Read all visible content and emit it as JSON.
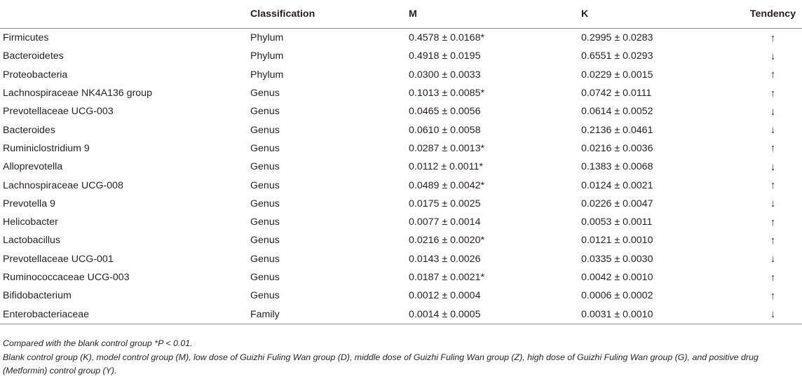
{
  "table": {
    "headers": [
      "",
      "Classification",
      "M",
      "K",
      "Tendency"
    ],
    "rows": [
      {
        "name": "Firmicutes",
        "classification": "Phylum",
        "m": "0.4578 ± 0.0168*",
        "k": "0.2995 ± 0.0283",
        "tendency": "↑"
      },
      {
        "name": "Bacteroidetes",
        "classification": "Phylum",
        "m": "0.4918 ± 0.0195",
        "k": "0.6551 ± 0.0293",
        "tendency": "↓"
      },
      {
        "name": "Proteobacteria",
        "classification": "Phylum",
        "m": "0.0300 ± 0.0033",
        "k": "0.0229 ± 0.0015",
        "tendency": "↑"
      },
      {
        "name": "Lachnospiraceae NK4A136 group",
        "classification": "Genus",
        "m": "0.1013 ± 0.0085*",
        "k": "0.0742 ± 0.0111",
        "tendency": "↑"
      },
      {
        "name": "Prevotellaceae UCG-003",
        "classification": "Genus",
        "m": "0.0465 ± 0.0056",
        "k": "0.0614 ± 0.0052",
        "tendency": "↓"
      },
      {
        "name": "Bacteroides",
        "classification": "Genus",
        "m": "0.0610 ± 0.0058",
        "k": "0.2136 ± 0.0461",
        "tendency": "↓"
      },
      {
        "name": "Ruminiclostridium 9",
        "classification": "Genus",
        "m": "0.0287 ± 0.0013*",
        "k": "0.0216 ± 0.0036",
        "tendency": "↑"
      },
      {
        "name": "Alloprevotella",
        "classification": "Genus",
        "m": "0.0112 ± 0.0011*",
        "k": "0.1383 ± 0.0068",
        "tendency": "↓"
      },
      {
        "name": "Lachnospiraceae UCG-008",
        "classification": "Genus",
        "m": "0.0489 ± 0.0042*",
        "k": "0.0124 ± 0.0021",
        "tendency": "↑"
      },
      {
        "name": "Prevotella 9",
        "classification": "Genus",
        "m": "0.0175 ± 0.0025",
        "k": "0.0226 ± 0.0047",
        "tendency": "↓"
      },
      {
        "name": "Helicobacter",
        "classification": "Genus",
        "m": "0.0077 ± 0.0014",
        "k": "0.0053 ± 0.0011",
        "tendency": "↑"
      },
      {
        "name": "Lactobacillus",
        "classification": "Genus",
        "m": "0.0216 ± 0.0020*",
        "k": "0.0121 ± 0.0010",
        "tendency": "↑"
      },
      {
        "name": "Prevotellaceae UCG-001",
        "classification": "Genus",
        "m": "0.0143 ± 0.0026",
        "k": "0.0335 ± 0.0030",
        "tendency": "↓"
      },
      {
        "name": "Ruminococcaceae UCG-003",
        "classification": "Genus",
        "m": "0.0187 ± 0.0021*",
        "k": "0.0042 ± 0.0010",
        "tendency": "↑"
      },
      {
        "name": "Bifidobacterium",
        "classification": "Genus",
        "m": "0.0012 ± 0.0004",
        "k": "0.0006 ± 0.0002",
        "tendency": "↑"
      },
      {
        "name": "Enterobacteriaceae",
        "classification": "Family",
        "m": "0.0014 ± 0.0005",
        "k": "0.0031 ± 0.0010",
        "tendency": "↓"
      }
    ]
  },
  "footnotes": {
    "significance": "Compared with the blank control group *P < 0.01.",
    "groups": "Blank control group (K), model control group (M), low dose of Guizhi Fuling Wan group (D), middle dose of Guizhi Fuling Wan group (Z), high dose of Guizhi Fuling Wan group (G), and positive drug (Metformin) control group (Y)."
  }
}
